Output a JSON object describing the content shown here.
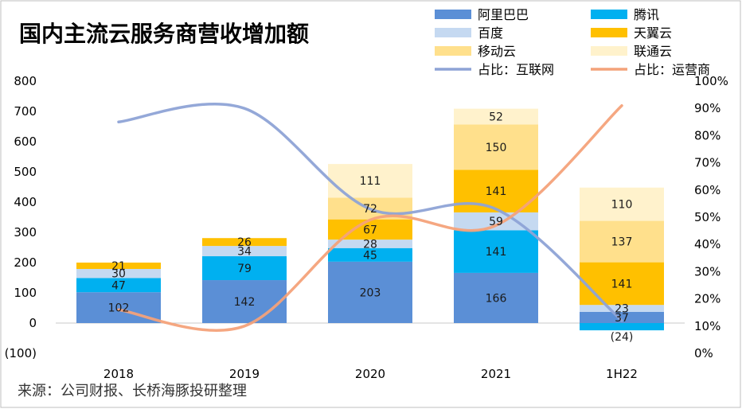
{
  "chart_data": {
    "type": "bar",
    "title": "国内主流云服务商营收增加额",
    "categories": [
      "2018",
      "2019",
      "2020",
      "2021",
      "1H22"
    ],
    "ylim": [
      -100,
      800
    ],
    "y_ticks": [
      "(100)",
      "0",
      "100",
      "200",
      "300",
      "400",
      "500",
      "600",
      "700",
      "800"
    ],
    "y2lim": [
      0,
      100
    ],
    "y2_ticks": [
      "0%",
      "10%",
      "20%",
      "30%",
      "40%",
      "50%",
      "60%",
      "70%",
      "80%",
      "90%",
      "100%"
    ],
    "legend_position": "top-right",
    "series": [
      {
        "name": "阿里巴巴",
        "type": "bar",
        "color": "#5b8fd6",
        "values": [
          102,
          142,
          203,
          166,
          37
        ],
        "labels": [
          "102",
          "142",
          "203",
          "166",
          "37"
        ]
      },
      {
        "name": "腾讯",
        "type": "bar",
        "color": "#00b0f0",
        "values": [
          47,
          79,
          45,
          141,
          -24
        ],
        "labels": [
          "47",
          "79",
          "45",
          "141",
          "(24)"
        ]
      },
      {
        "name": "百度",
        "type": "bar",
        "color": "#c5d9f1",
        "values": [
          30,
          34,
          28,
          59,
          23
        ],
        "labels": [
          "30",
          "34",
          "28",
          "59",
          "23"
        ]
      },
      {
        "name": "天翼云",
        "type": "bar",
        "color": "#ffc000",
        "values": [
          21,
          26,
          67,
          141,
          141
        ],
        "labels": [
          "21",
          "26",
          "67",
          "141",
          "141"
        ]
      },
      {
        "name": "移动云",
        "type": "bar",
        "color": "#ffe08c",
        "values": [
          0,
          0,
          72,
          150,
          137
        ],
        "labels": [
          "",
          "",
          "72",
          "150",
          "137"
        ]
      },
      {
        "name": "联通云",
        "type": "bar",
        "color": "#fff2cc",
        "values": [
          0,
          0,
          111,
          52,
          110
        ],
        "labels": [
          "",
          "",
          "111",
          "52",
          "110"
        ]
      },
      {
        "name": "占比：互联网",
        "type": "line",
        "axis": "right",
        "color": "#8ea3d6",
        "values": [
          85,
          90,
          53,
          53,
          12
        ]
      },
      {
        "name": "占比：运营商",
        "type": "line",
        "axis": "right",
        "color": "#f4a27a",
        "values": [
          16,
          10,
          49,
          47,
          91
        ]
      }
    ]
  },
  "source": "来源：公司财报、长桥海豚投研整理"
}
